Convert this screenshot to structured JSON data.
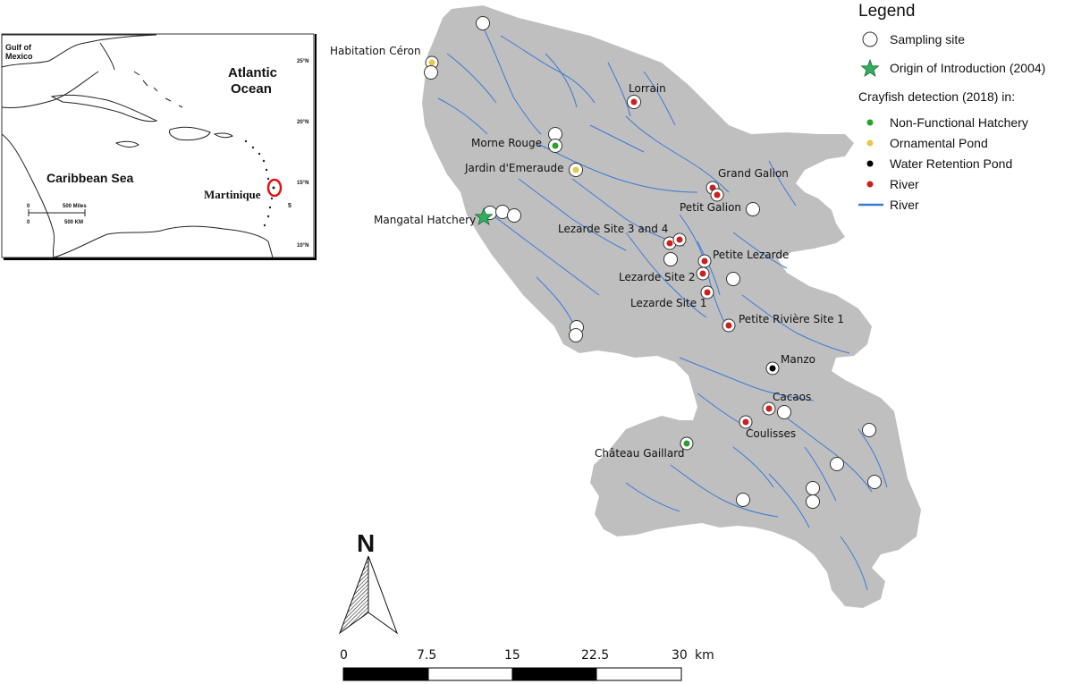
{
  "inset": {
    "labels": {
      "gulf_line1": "Gulf of",
      "gulf_line2": "Mexico",
      "atlantic_line1": "Atlantic",
      "atlantic_line2": "Ocean",
      "caribbean": "Caribbean Sea",
      "martinique": "Martinique",
      "scale_miles": "500 Miles",
      "scale_km": "500 KM",
      "scale_zero1": "0",
      "scale_zero2": "0",
      "lat1": "25°N",
      "lat2": "20°N",
      "lat3": "15°N",
      "lat4": "10°N",
      "lon1": "5"
    }
  },
  "legend": {
    "title": "Legend",
    "sampling_site": "Sampling site",
    "origin": "Origin of Introduction (2004)",
    "detection_heading": "Crayfish detection (2018) in:",
    "non_functional_hatchery": "Non-Functional Hatchery",
    "ornamental_pond": "Ornamental Pond",
    "water_retention_pond": "Water Retention Pond",
    "river_point": "River",
    "river_line": "River",
    "colors": {
      "non_functional_hatchery": "#2ca02c",
      "ornamental_pond": "#e8c84a",
      "water_retention_pond": "#000000",
      "river": "#cc1f1f",
      "river_line": "#3a7bd5",
      "land": "#bfbfbf",
      "origin_star": "#2fae5b"
    }
  },
  "sites": {
    "habitation_ceron": "Habitation Céron",
    "lorrain": "Lorrain",
    "morne_rouge": "Morne Rouge",
    "jardin_emeraude": "Jardin d'Emeraude",
    "grand_galion": "Grand Galion",
    "petit_galion": "Petit Galion",
    "mangatal_hatchery": "Mangatal Hatchery",
    "lezarde_site_3_4": "Lezarde Site 3 and 4",
    "petite_lezarde": "Petite Lezarde",
    "lezarde_site_2": "Lezarde Site 2",
    "lezarde_site_1": "Lezarde Site 1",
    "petite_riviere_site_1": "Petite Rivière Site 1",
    "manzo": "Manzo",
    "cacaos": "Cacaos",
    "coulisses": "Coulisses",
    "chateau_gaillard": "Château Gaillard"
  },
  "north_arrow": {
    "label": "N"
  },
  "scale_bar": {
    "ticks": [
      "0",
      "7.5",
      "15",
      "22.5",
      "30"
    ],
    "unit": "km"
  }
}
